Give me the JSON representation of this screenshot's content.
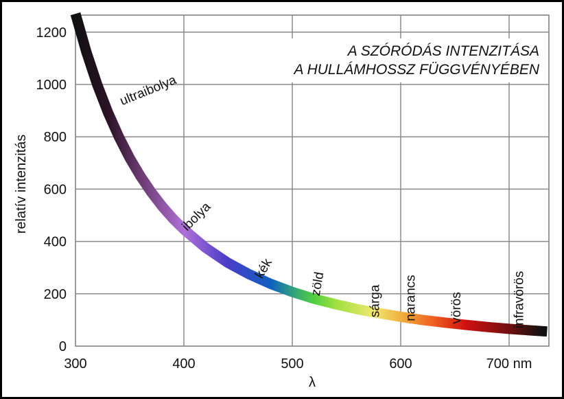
{
  "chart_data": {
    "type": "line",
    "title_lines": [
      "A SZÓRÓDÁS INTENZITÁSA",
      "A HULLÁMHOSSZ FÜGGVÉNYÉBEN"
    ],
    "xlabel": "λ",
    "ylabel": "relatív intenzitás",
    "x_ticks": [
      "300",
      "400",
      "500",
      "600",
      "700 nm"
    ],
    "y_ticks": [
      "0",
      "200",
      "400",
      "600",
      "800",
      "1000",
      "1200"
    ],
    "xlim": [
      300,
      740
    ],
    "ylim": [
      0,
      1230
    ],
    "grid": true,
    "series": [
      {
        "x": [
          300,
          310,
          320,
          330,
          340,
          350,
          360,
          370,
          380,
          390,
          400,
          420,
          440,
          460,
          480,
          500,
          520,
          540,
          560,
          580,
          600,
          620,
          640,
          660,
          680,
          700,
          720,
          735
        ],
        "y": [
          1270,
          1125,
          1000,
          893,
          800,
          719,
          649,
          588,
          534,
          487,
          446,
          376,
          320,
          275,
          238,
          207,
          181,
          160,
          141,
          126,
          112,
          100,
          90,
          81,
          73,
          66,
          60,
          56
        ]
      }
    ],
    "color_stops": [
      {
        "x": 300,
        "color": "#111111"
      },
      {
        "x": 330,
        "color": "#2a1224"
      },
      {
        "x": 360,
        "color": "#6a3a70"
      },
      {
        "x": 400,
        "color": "#b070d8"
      },
      {
        "x": 440,
        "color": "#4a3cc8"
      },
      {
        "x": 480,
        "color": "#1060c0"
      },
      {
        "x": 500,
        "color": "#30a080"
      },
      {
        "x": 520,
        "color": "#50d040"
      },
      {
        "x": 540,
        "color": "#a0e040"
      },
      {
        "x": 575,
        "color": "#f0e870"
      },
      {
        "x": 600,
        "color": "#f0b040"
      },
      {
        "x": 630,
        "color": "#f06020"
      },
      {
        "x": 660,
        "color": "#d01010"
      },
      {
        "x": 700,
        "color": "#701010"
      },
      {
        "x": 735,
        "color": "#111111"
      }
    ],
    "annotations": [
      {
        "text": "ultraibolya",
        "x": 343,
        "y": 920,
        "angle": -22
      },
      {
        "text": "ibolya",
        "x": 403,
        "y": 438,
        "angle": -45
      },
      {
        "text": "kék",
        "x": 472,
        "y": 255,
        "angle": -60
      },
      {
        "text": "zöld",
        "x": 525,
        "y": 190,
        "angle": -80
      },
      {
        "text": "sárga",
        "x": 580,
        "y": 110,
        "angle": -90
      },
      {
        "text": "narancs",
        "x": 613,
        "y": 95,
        "angle": -90
      },
      {
        "text": "vörös",
        "x": 655,
        "y": 85,
        "angle": -90
      },
      {
        "text": "infravörös",
        "x": 713,
        "y": 68,
        "angle": -90
      }
    ]
  }
}
